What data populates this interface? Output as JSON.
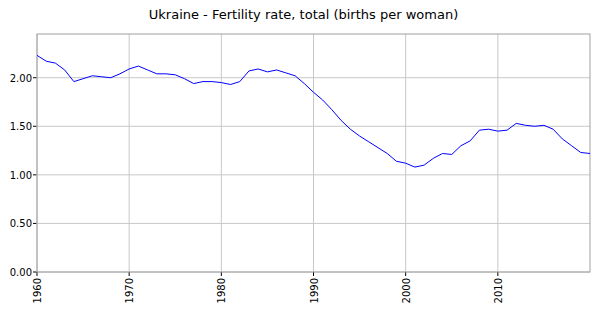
{
  "chart_data": {
    "type": "line",
    "title": "Ukraine - Fertility rate, total (births per woman)",
    "x": [
      1960,
      1961,
      1962,
      1963,
      1964,
      1965,
      1966,
      1967,
      1968,
      1969,
      1970,
      1971,
      1972,
      1973,
      1974,
      1975,
      1976,
      1977,
      1978,
      1979,
      1980,
      1981,
      1982,
      1983,
      1984,
      1985,
      1986,
      1987,
      1988,
      1989,
      1990,
      1991,
      1992,
      1993,
      1994,
      1995,
      1996,
      1997,
      1998,
      1999,
      2000,
      2001,
      2002,
      2003,
      2004,
      2005,
      2006,
      2007,
      2008,
      2009,
      2010,
      2011,
      2012,
      2013,
      2014,
      2015,
      2016,
      2017,
      2018,
      2019,
      2020
    ],
    "values": [
      2.23,
      2.17,
      2.15,
      2.08,
      1.96,
      1.99,
      2.02,
      2.01,
      2.0,
      2.04,
      2.09,
      2.12,
      2.08,
      2.04,
      2.04,
      2.03,
      1.99,
      1.94,
      1.96,
      1.96,
      1.95,
      1.93,
      1.96,
      2.07,
      2.09,
      2.06,
      2.08,
      2.05,
      2.02,
      1.94,
      1.85,
      1.77,
      1.67,
      1.56,
      1.47,
      1.4,
      1.34,
      1.28,
      1.22,
      1.14,
      1.12,
      1.08,
      1.1,
      1.17,
      1.22,
      1.21,
      1.3,
      1.35,
      1.46,
      1.47,
      1.45,
      1.46,
      1.53,
      1.51,
      1.5,
      1.51,
      1.47,
      1.37,
      1.3,
      1.23,
      1.22
    ],
    "color": "#0000ff",
    "xlim": [
      1960,
      2020
    ],
    "xticks": [
      1960,
      1970,
      1980,
      1990,
      2000,
      2010
    ],
    "ylim": [
      0,
      2.45
    ],
    "yticks": [
      {
        "value": 0,
        "label": "0.00"
      },
      {
        "value": 0.5,
        "label": "0.50"
      },
      {
        "value": 1,
        "label": "1.00"
      },
      {
        "value": 1.5,
        "label": "1.50"
      },
      {
        "value": 2,
        "label": "2.00"
      }
    ],
    "grid": true
  }
}
